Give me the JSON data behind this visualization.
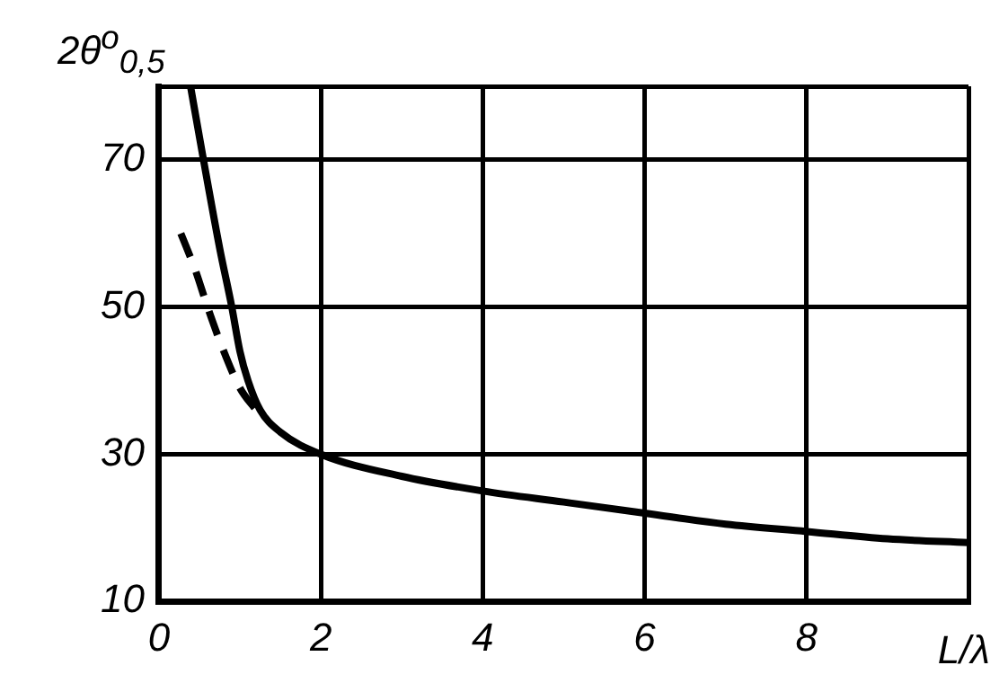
{
  "chart_data": {
    "type": "line",
    "xlabel": "L/λ",
    "ylabel": "2θ$^{o}$$_{0,5}$",
    "xlim": [
      0,
      10
    ],
    "ylim": [
      10,
      80
    ],
    "xticks": [
      0,
      2,
      4,
      6,
      8,
      {
        "value": 10,
        "label": null
      }
    ],
    "yticks": [
      10,
      30,
      50,
      70,
      {
        "value": 80,
        "label": null
      }
    ],
    "grid": true,
    "marker": "none",
    "series": [
      {
        "color": "#000000",
        "line_style": "solid",
        "x": [
          0.39,
          0.55,
          0.75,
          0.9,
          1.0,
          1.1,
          1.25,
          1.5,
          2,
          3,
          4,
          5,
          6,
          7,
          8,
          9,
          10
        ],
        "values": [
          80,
          70,
          58,
          50,
          44,
          40,
          36,
          33,
          30,
          27,
          25,
          23.5,
          22,
          20.5,
          19.5,
          18.5,
          18
        ]
      },
      {
        "color": "#000000",
        "line_style": "dashed",
        "x": [
          0.27,
          0.45,
          0.6,
          0.8,
          1.0,
          1.2
        ],
        "values": [
          60,
          55,
          50,
          44,
          39,
          36
        ]
      }
    ]
  }
}
